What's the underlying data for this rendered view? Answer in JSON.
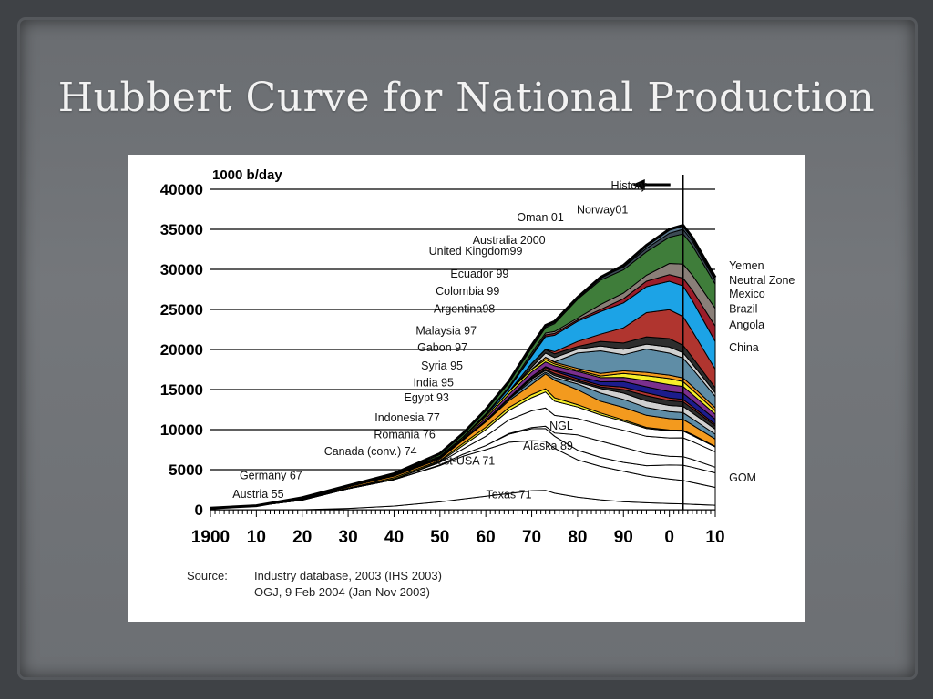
{
  "slide": {
    "title": "Hubbert Curve for National Production"
  },
  "source": {
    "label": "Source:",
    "lines": [
      "Industry database, 2003 (IHS 2003)",
      "OGJ, 9 Feb 2004 (Jan-Nov 2003)"
    ]
  },
  "chart_data": {
    "type": "area",
    "title": "",
    "ylabel": "1000 b/day",
    "xlabel": "",
    "x_ticks": [
      "1900",
      "10",
      "20",
      "30",
      "40",
      "50",
      "60",
      "70",
      "80",
      "90",
      "0",
      "10"
    ],
    "x_tick_values": [
      1900,
      1910,
      1920,
      1930,
      1940,
      1950,
      1960,
      1970,
      1980,
      1990,
      2000,
      2010
    ],
    "y_ticks": [
      "0",
      "5000",
      "10000",
      "15000",
      "20000",
      "25000",
      "30000",
      "35000",
      "40000"
    ],
    "y_tick_values": [
      0,
      5000,
      10000,
      15000,
      20000,
      25000,
      30000,
      35000,
      40000
    ],
    "xlim": [
      1900,
      2010
    ],
    "ylim": [
      0,
      40000
    ],
    "grid": "horizontal",
    "history_divider_year": 2003,
    "history_label": "History",
    "x": [
      1900,
      1910,
      1920,
      1930,
      1940,
      1950,
      1955,
      1960,
      1965,
      1970,
      1973,
      1975,
      1980,
      1985,
      1990,
      1995,
      2000,
      2003,
      2005,
      2010
    ],
    "total_production": [
      200,
      500,
      1500,
      3000,
      4500,
      7000,
      9500,
      12500,
      16000,
      20500,
      23000,
      23500,
      26500,
      29000,
      30500,
      33000,
      35000,
      35500,
      34000,
      29000
    ],
    "series": [
      {
        "name": "Texas 71",
        "color": "#ffffff",
        "values": [
          0,
          0,
          0,
          100,
          300,
          600,
          800,
          1000,
          1200,
          1600,
          1700,
          1500,
          1300,
          1100,
          900,
          800,
          700,
          650,
          620,
          550
        ]
      },
      {
        "name": "Rest-USA 71",
        "color": "#ffffff",
        "values": [
          200,
          400,
          900,
          1600,
          2200,
          2800,
          3200,
          3500,
          3800,
          4200,
          4300,
          4100,
          3900,
          3700,
          3400,
          3100,
          2800,
          2600,
          2500,
          2200
        ]
      },
      {
        "name": "GOM",
        "color": "#ffffff",
        "values": [
          0,
          0,
          0,
          0,
          0,
          50,
          150,
          300,
          600,
          1000,
          1100,
          1100,
          1000,
          1000,
          1000,
          1200,
          1600,
          1700,
          1750,
          1800
        ]
      },
      {
        "name": "Alaska 89",
        "color": "#ffffff",
        "values": [
          0,
          0,
          0,
          0,
          0,
          0,
          0,
          0,
          50,
          100,
          200,
          300,
          1600,
          1800,
          1700,
          1400,
          1000,
          950,
          900,
          700
        ]
      },
      {
        "name": "NGL",
        "color": "#ffffff",
        "values": [
          0,
          0,
          0,
          0,
          50,
          200,
          400,
          700,
          1000,
          1400,
          1600,
          1600,
          1700,
          1800,
          1900,
          2000,
          2100,
          2100,
          2050,
          1900
        ]
      },
      {
        "name": "Canada (conv.) 74",
        "color": "#ffffff",
        "values": [
          0,
          0,
          0,
          0,
          10,
          50,
          250,
          500,
          700,
          1100,
          1400,
          1300,
          1200,
          1100,
          1000,
          900,
          800,
          750,
          700,
          600
        ]
      },
      {
        "name": "Romania 76",
        "color": "#ffffff",
        "values": [
          0,
          0,
          20,
          60,
          100,
          90,
          150,
          180,
          220,
          270,
          280,
          300,
          250,
          220,
          160,
          120,
          100,
          100,
          95,
          80
        ]
      },
      {
        "name": "Indonesia 77",
        "color": "#ffffff",
        "values": [
          0,
          0,
          50,
          100,
          150,
          120,
          250,
          400,
          500,
          850,
          1300,
          1600,
          1550,
          1300,
          1400,
          1400,
          1300,
          1200,
          1100,
          900
        ]
      },
      {
        "name": "Egypt 93",
        "color": "#ffffff",
        "values": [
          0,
          0,
          0,
          0,
          20,
          50,
          40,
          60,
          120,
          300,
          150,
          250,
          600,
          900,
          900,
          900,
          800,
          750,
          700,
          600
        ]
      },
      {
        "name": "India 95",
        "color": "#ffffff",
        "values": [
          0,
          0,
          0,
          0,
          0,
          0,
          10,
          20,
          60,
          140,
          150,
          180,
          200,
          500,
          700,
          750,
          700,
          700,
          680,
          620
        ]
      },
      {
        "name": "Syria 95",
        "color": "#ffffff",
        "values": [
          0,
          0,
          0,
          0,
          0,
          0,
          0,
          0,
          0,
          100,
          110,
          180,
          170,
          180,
          400,
          600,
          550,
          500,
          480,
          400
        ]
      },
      {
        "name": "Gabon 97",
        "color": "#ffffff",
        "values": [
          0,
          0,
          0,
          0,
          0,
          0,
          0,
          20,
          30,
          100,
          150,
          220,
          180,
          170,
          270,
          350,
          310,
          260,
          240,
          200
        ]
      },
      {
        "name": "Malaysia 97",
        "color": "#ffffff",
        "values": [
          0,
          0,
          0,
          0,
          0,
          0,
          0,
          0,
          0,
          20,
          80,
          100,
          280,
          400,
          620,
          700,
          720,
          700,
          680,
          620
        ]
      },
      {
        "name": "Argentina 98",
        "color": "#ffffff",
        "values": [
          0,
          0,
          10,
          30,
          60,
          70,
          90,
          170,
          270,
          390,
          410,
          400,
          480,
          460,
          480,
          700,
          800,
          750,
          720,
          620
        ]
      },
      {
        "name": "Colombia 99",
        "color": "#ffffff",
        "values": [
          0,
          0,
          0,
          20,
          70,
          90,
          110,
          150,
          200,
          220,
          200,
          160,
          120,
          180,
          440,
          580,
          690,
          550,
          520,
          420
        ]
      },
      {
        "name": "Ecuador 99",
        "color": "#ffffff",
        "values": [
          0,
          0,
          0,
          0,
          0,
          0,
          0,
          0,
          0,
          0,
          210,
          160,
          200,
          280,
          290,
          390,
          400,
          410,
          420,
          380
        ]
      },
      {
        "name": "United Kingdom 99",
        "color": "#ffffff",
        "values": [
          0,
          0,
          0,
          0,
          0,
          0,
          0,
          0,
          0,
          0,
          0,
          30,
          1600,
          2500,
          1800,
          2700,
          2500,
          2200,
          2000,
          1400
        ]
      },
      {
        "name": "Australia 2000",
        "color": "#ffffff",
        "values": [
          0,
          0,
          0,
          0,
          0,
          0,
          0,
          0,
          0,
          170,
          370,
          400,
          400,
          550,
          620,
          560,
          700,
          600,
          550,
          450
        ]
      },
      {
        "name": "Oman 01",
        "color": "#ffffff",
        "values": [
          0,
          0,
          0,
          0,
          0,
          0,
          0,
          0,
          0,
          330,
          290,
          340,
          280,
          500,
          690,
          850,
          960,
          820,
          760,
          620
        ]
      },
      {
        "name": "Norway 01",
        "color": "#ffffff",
        "values": [
          0,
          0,
          0,
          0,
          0,
          0,
          0,
          0,
          0,
          0,
          30,
          190,
          520,
          800,
          1700,
          2800,
          3300,
          3200,
          3000,
          2300
        ]
      },
      {
        "name": "China",
        "color": "#1ca3e6",
        "values": [
          0,
          0,
          0,
          0,
          0,
          0,
          0,
          100,
          230,
          600,
          1100,
          1500,
          2100,
          2500,
          2800,
          3000,
          3250,
          3400,
          3500,
          3400
        ]
      },
      {
        "name": "Angola",
        "color": "#9b1d2a",
        "values": [
          0,
          0,
          0,
          0,
          0,
          0,
          0,
          0,
          0,
          100,
          160,
          160,
          150,
          230,
          470,
          630,
          750,
          880,
          1200,
          1900
        ]
      },
      {
        "name": "Brazil",
        "color": "#8a7f78",
        "values": [
          0,
          0,
          0,
          0,
          0,
          0,
          0,
          80,
          100,
          170,
          170,
          180,
          190,
          560,
          630,
          700,
          1270,
          1550,
          1700,
          2200
        ]
      },
      {
        "name": "Mexico",
        "color": "#3f7d3a",
        "values": [
          0,
          0,
          150,
          40,
          44,
          200,
          250,
          270,
          320,
          430,
          460,
          720,
          1950,
          2700,
          2600,
          2700,
          3000,
          3370,
          3400,
          3000
        ]
      },
      {
        "name": "Neutral Zone",
        "color": "#3c4a55",
        "values": [
          0,
          0,
          0,
          0,
          0,
          0,
          0,
          50,
          100,
          200,
          200,
          200,
          200,
          300,
          300,
          400,
          450,
          500,
          500,
          450
        ]
      },
      {
        "name": "Yemen",
        "color": "#5c7a90",
        "values": [
          0,
          0,
          0,
          0,
          0,
          0,
          0,
          0,
          0,
          0,
          0,
          0,
          0,
          0,
          200,
          350,
          450,
          450,
          420,
          380
        ]
      }
    ],
    "band_colors_between": [
      "#f5ef2a",
      "#f39a1e",
      "#5f8da6",
      "#d0d0d0",
      "#2d2d2d",
      "#b0352f",
      "#1c1c8c",
      "#7b2f8d"
    ],
    "labels": [
      {
        "text": "History",
        "year": 1995,
        "value": 40000
      },
      {
        "text": "Oman 01",
        "year": 1977,
        "value": 36000
      },
      {
        "text": "Norway01",
        "year": 1991,
        "value": 37000
      },
      {
        "text": "Australia 2000",
        "year": 1973,
        "value": 33200
      },
      {
        "text": "United Kingdom99",
        "year": 1968,
        "value": 31800
      },
      {
        "text": "Ecuador 99",
        "year": 1965,
        "value": 29000
      },
      {
        "text": "Colombia 99",
        "year": 1963,
        "value": 26800
      },
      {
        "text": "Argentina98",
        "year": 1962,
        "value": 24600
      },
      {
        "text": "Malaysia 97",
        "year": 1958,
        "value": 21900
      },
      {
        "text": "Gabon 97",
        "year": 1956,
        "value": 19800
      },
      {
        "text": "Syria 95",
        "year": 1955,
        "value": 17500
      },
      {
        "text": "India 95",
        "year": 1953,
        "value": 15400
      },
      {
        "text": "Egypt 93",
        "year": 1952,
        "value": 13500
      },
      {
        "text": "Indonesia 77",
        "year": 1950,
        "value": 11000
      },
      {
        "text": "Romania 76",
        "year": 1949,
        "value": 8900
      },
      {
        "text": "Canada (conv.) 74",
        "year": 1945,
        "value": 6800
      },
      {
        "text": "Germany 67",
        "year": 1920,
        "value": 3800
      },
      {
        "text": "Austria 55",
        "year": 1916,
        "value": 1500
      },
      {
        "text": "Rest-USA 71",
        "year": 1962,
        "value": 5600
      },
      {
        "text": "Texas 71",
        "year": 1970,
        "value": 1400
      },
      {
        "text": "NGL",
        "year": 1979,
        "value": 10000
      },
      {
        "text": "Alaska 89",
        "year": 1979,
        "value": 7500
      },
      {
        "text": "Yemen",
        "year": 2013,
        "value": 30000
      },
      {
        "text": "Neutral Zone",
        "year": 2013,
        "value": 28200
      },
      {
        "text": "Mexico",
        "year": 2013,
        "value": 26500
      },
      {
        "text": "Brazil",
        "year": 2013,
        "value": 24600
      },
      {
        "text": "Angola",
        "year": 2013,
        "value": 22600
      },
      {
        "text": "China",
        "year": 2013,
        "value": 19800
      },
      {
        "text": "GOM",
        "year": 2013,
        "value": 3500
      }
    ]
  }
}
